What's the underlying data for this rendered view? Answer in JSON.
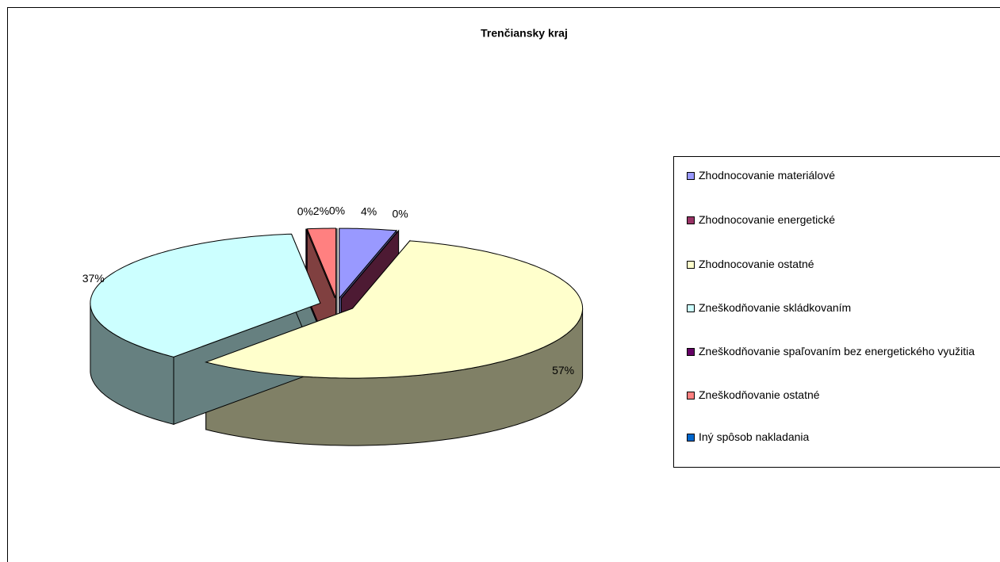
{
  "chart_data": {
    "type": "pie3d",
    "title": "Trenčiansky kraj",
    "categories": [
      "Zhodnocovanie materiálové",
      "Zhodnocovanie energetické",
      "Zhodnocovanie ostatné",
      "Zneškodňovanie skládkovaním",
      "Zneškodňovanie spaľovaním bez energetického využitia",
      "Zneškodňovanie ostatné",
      "Iný spôsob nakladania"
    ],
    "values": [
      4,
      0,
      57,
      37,
      0,
      2,
      0
    ],
    "value_labels": [
      "4%",
      "0%",
      "57%",
      "37%",
      "0%",
      "2%",
      "0%"
    ],
    "colors": [
      "#9999FF",
      "#993366",
      "#FFFFCC",
      "#CCFFFF",
      "#660066",
      "#FF8080",
      "#0066CC"
    ],
    "legend": "right"
  }
}
